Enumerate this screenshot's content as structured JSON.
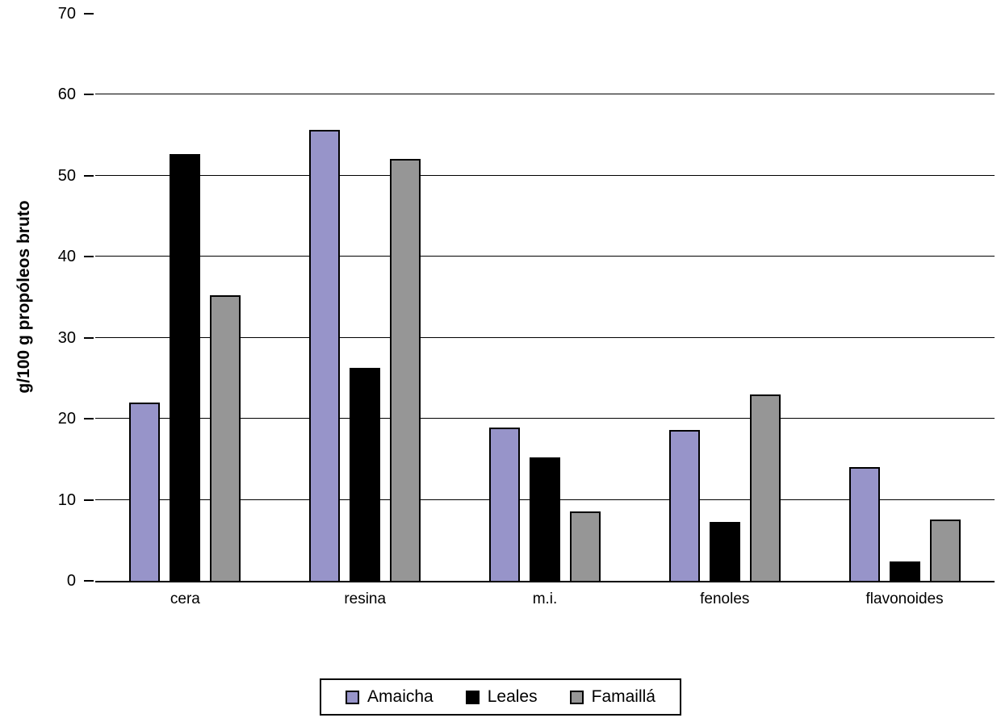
{
  "chart_data": {
    "type": "bar",
    "title": "",
    "xlabel": "",
    "ylabel": "g/100 g propóleos bruto",
    "categories": [
      "cera",
      "resina",
      "m.i.",
      "fenoles",
      "flavonoides"
    ],
    "series": [
      {
        "name": "Amaicha",
        "color": "#9794c9",
        "values": [
          22.0,
          55.7,
          18.9,
          18.6,
          14.0
        ]
      },
      {
        "name": "Leales",
        "color": "#000000",
        "values": [
          52.7,
          26.3,
          15.2,
          7.3,
          2.4
        ]
      },
      {
        "name": "Famaillá",
        "color": "#969696",
        "values": [
          35.3,
          52.1,
          8.6,
          23.0,
          7.6
        ]
      }
    ],
    "ylim": [
      0,
      70
    ],
    "yticks": [
      0,
      10,
      20,
      30,
      40,
      50,
      60,
      70
    ],
    "grid": true,
    "legend_position": "bottom"
  }
}
